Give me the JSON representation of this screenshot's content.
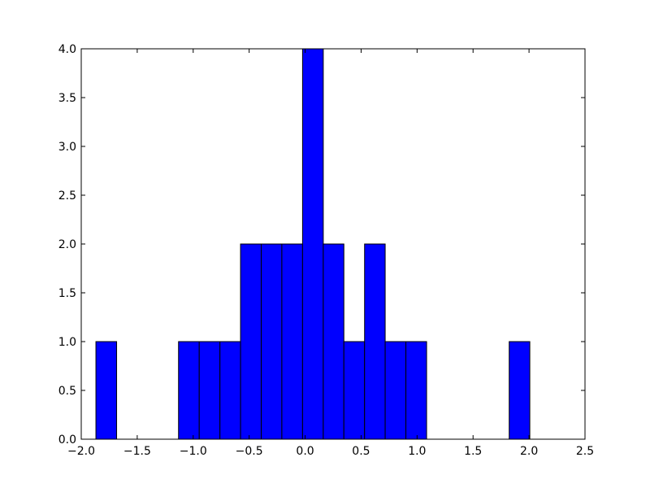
{
  "chart_data": {
    "type": "histogram",
    "bins": [
      -1.869,
      -1.684,
      -1.5,
      -1.315,
      -1.131,
      -0.946,
      -0.761,
      -0.577,
      -0.392,
      -0.208,
      -0.023,
      0.162,
      0.346,
      0.531,
      0.715,
      0.9,
      1.085,
      1.269,
      1.454,
      1.638,
      1.823,
      2.007
    ],
    "values": [
      1,
      0,
      0,
      0,
      1,
      1,
      1,
      2,
      2,
      2,
      4,
      2,
      1,
      2,
      1,
      1,
      0,
      0,
      0,
      0,
      1
    ],
    "color": "#0000ff",
    "xlim": [
      -2.0,
      2.5
    ],
    "xticks": [
      {
        "value": -2.0,
        "label": "−2.0"
      },
      {
        "value": -1.5,
        "label": "−1.5"
      },
      {
        "value": -1.0,
        "label": "−1.0"
      },
      {
        "value": -0.5,
        "label": "−0.5"
      },
      {
        "value": 0,
        "label": "0.0"
      },
      0.5,
      {
        "value": 1,
        "label": "1.0"
      },
      1.5,
      {
        "value": 2,
        "label": "2.0"
      },
      2.5
    ],
    "ylim": [
      0,
      4.0
    ],
    "yticks": [
      {
        "value": 0,
        "label": "0.0"
      },
      0.5,
      {
        "value": 1,
        "label": "1.0"
      },
      1.5,
      {
        "value": 2,
        "label": "2.0"
      },
      2.5,
      {
        "value": 3,
        "label": "3.0"
      },
      3.5,
      {
        "value": 4,
        "label": "4.0"
      }
    ]
  }
}
